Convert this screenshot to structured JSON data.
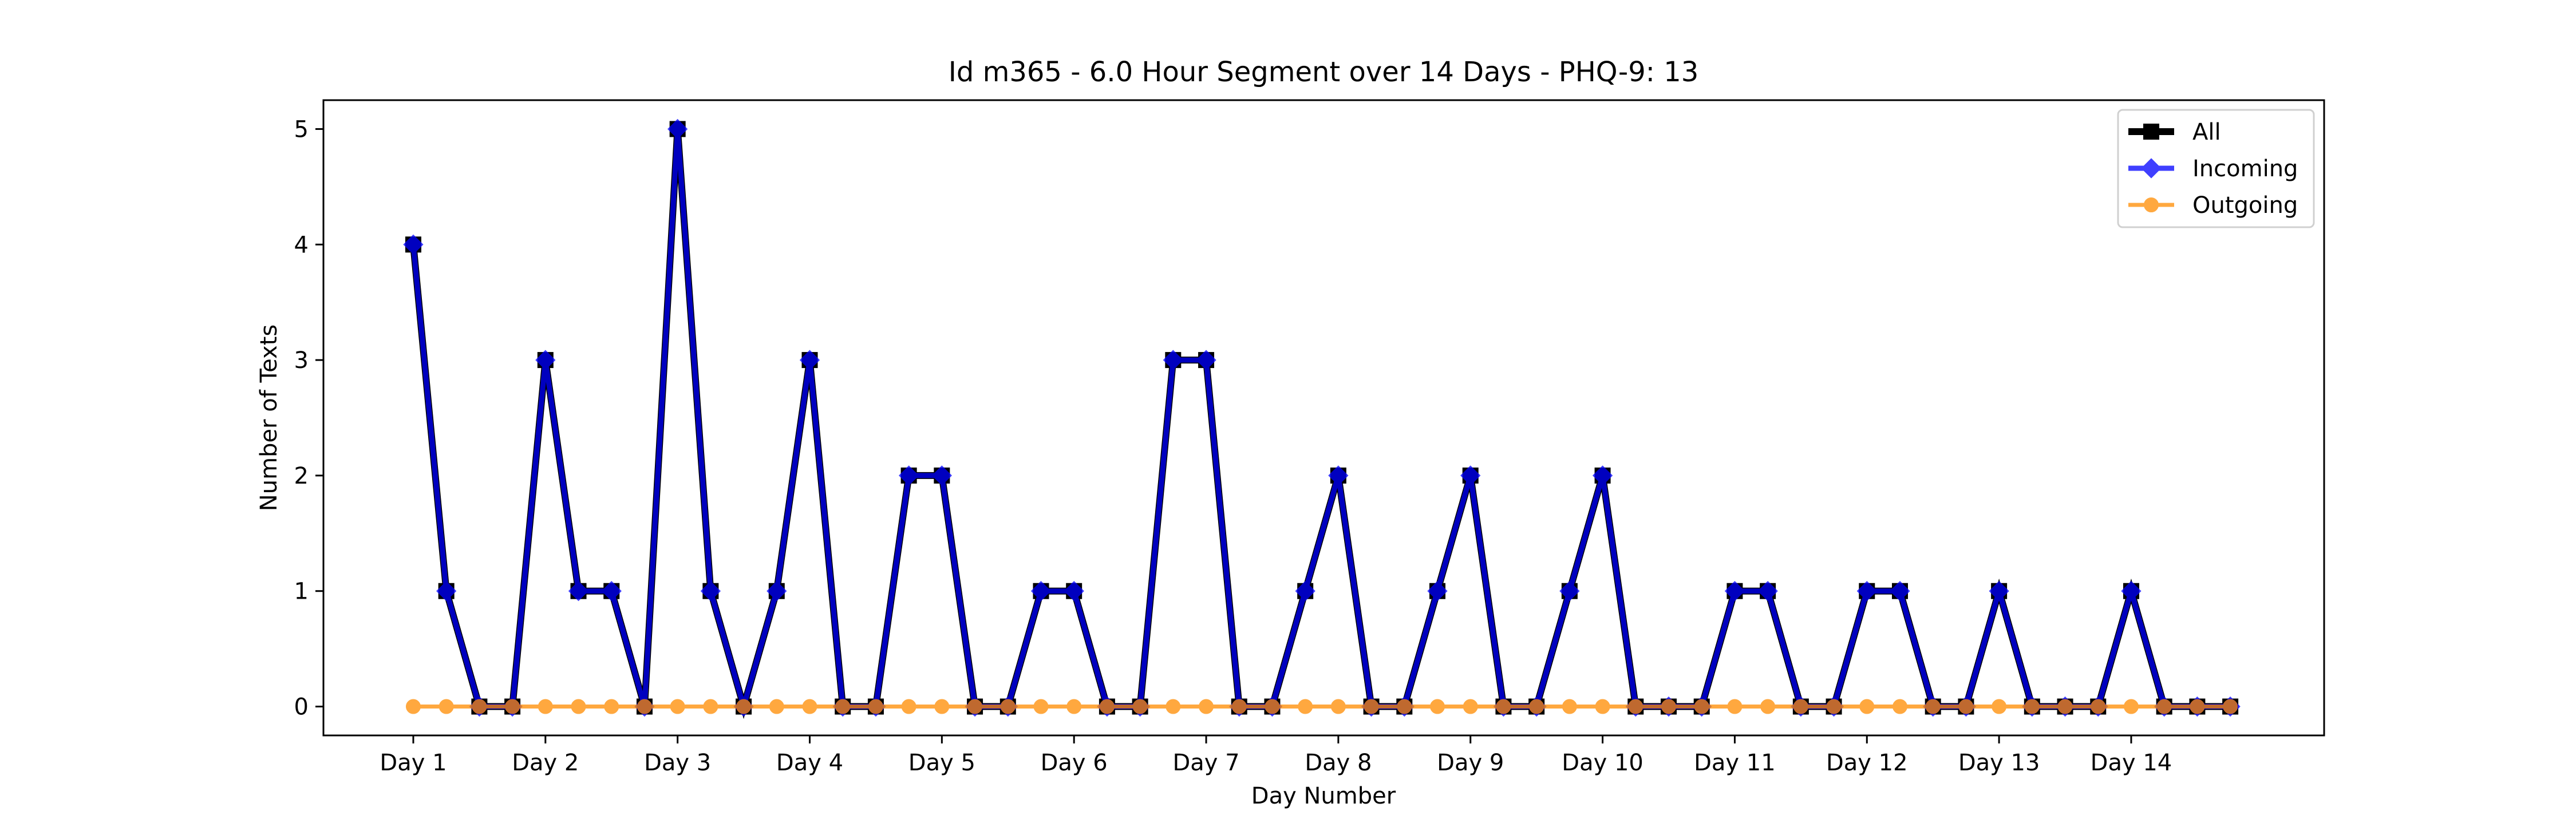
{
  "chart_data": {
    "type": "line",
    "title": "Id m365 - 6.0 Hour Segment over 14 Days - PHQ-9: 13",
    "xlabel": "Day Number",
    "ylabel": "Number of Texts",
    "x_tick_labels": [
      "Day 1",
      "Day 2",
      "Day 3",
      "Day 4",
      "Day 5",
      "Day 6",
      "Day 7",
      "Day 8",
      "Day 9",
      "Day 10",
      "Day 11",
      "Day 12",
      "Day 13",
      "Day 14"
    ],
    "y_ticks": [
      0,
      1,
      2,
      3,
      4,
      5
    ],
    "x": [
      1,
      1.25,
      1.5,
      1.75,
      2,
      2.25,
      2.5,
      2.75,
      3,
      3.25,
      3.5,
      3.75,
      4,
      4.25,
      4.5,
      4.75,
      5,
      5.25,
      5.5,
      5.75,
      6,
      6.25,
      6.5,
      6.75,
      7,
      7.25,
      7.5,
      7.75,
      8,
      8.25,
      8.5,
      8.75,
      9,
      9.25,
      9.5,
      9.75,
      10,
      10.25,
      10.5,
      10.75,
      11,
      11.25,
      11.5,
      11.75,
      12,
      12.25,
      12.5,
      12.75,
      13,
      13.25,
      13.5,
      13.75,
      14,
      14.25,
      14.5,
      14.75
    ],
    "xlim": [
      0.32,
      15.46
    ],
    "ylim": [
      -0.25,
      5.25
    ],
    "grid": false,
    "legend_position": "top-right",
    "series": [
      {
        "name": "All",
        "color": "#000000",
        "marker": "square",
        "values": [
          4,
          1,
          0,
          0,
          3,
          1,
          1,
          0,
          5,
          1,
          0,
          1,
          3,
          0,
          0,
          2,
          2,
          0,
          0,
          1,
          1,
          0,
          0,
          3,
          3,
          0,
          0,
          1,
          2,
          0,
          0,
          1,
          2,
          0,
          0,
          1,
          2,
          0,
          0,
          0,
          1,
          1,
          0,
          0,
          1,
          1,
          0,
          0,
          1,
          0,
          0,
          0,
          1,
          0,
          0,
          0
        ]
      },
      {
        "name": "Incoming",
        "color": "#0000ff",
        "marker": "diamond",
        "values": [
          4,
          1,
          0,
          0,
          3,
          1,
          1,
          0,
          5,
          1,
          0,
          1,
          3,
          0,
          0,
          2,
          2,
          0,
          0,
          1,
          1,
          0,
          0,
          3,
          3,
          0,
          0,
          1,
          2,
          0,
          0,
          1,
          2,
          0,
          0,
          1,
          2,
          0,
          0,
          0,
          1,
          1,
          0,
          0,
          1,
          1,
          0,
          0,
          1,
          0,
          0,
          0,
          1,
          0,
          0,
          0
        ]
      },
      {
        "name": "Outgoing",
        "color": "#ff8c00",
        "marker": "circle",
        "values": [
          0,
          0,
          0,
          0,
          0,
          0,
          0,
          0,
          0,
          0,
          0,
          0,
          0,
          0,
          0,
          0,
          0,
          0,
          0,
          0,
          0,
          0,
          0,
          0,
          0,
          0,
          0,
          0,
          0,
          0,
          0,
          0,
          0,
          0,
          0,
          0,
          0,
          0,
          0,
          0,
          0,
          0,
          0,
          0,
          0,
          0,
          0,
          0,
          0,
          0,
          0,
          0,
          0,
          0,
          0,
          0
        ]
      }
    ]
  }
}
